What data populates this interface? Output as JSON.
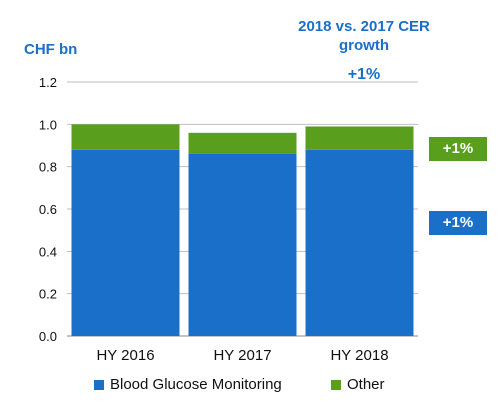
{
  "unit_label": "CHF bn",
  "growth_header": "2018 vs. 2017 CER growth",
  "growth_total": "+1%",
  "segment_growth": {
    "other": "+1%",
    "bgm": "+1%"
  },
  "colors": {
    "bgm": "#1a70c8",
    "other": "#5a9e1e",
    "text": "#1a70c8",
    "grid": "#bfbfbf"
  },
  "chart_data": {
    "type": "bar",
    "stacked": true,
    "categories": [
      "HY 2016",
      "HY 2017",
      "HY 2018"
    ],
    "series": [
      {
        "name": "Blood Glucose Monitoring",
        "values": [
          0.88,
          0.86,
          0.88
        ]
      },
      {
        "name": "Other",
        "values": [
          0.12,
          0.1,
          0.11
        ]
      }
    ],
    "ylabel": "CHF bn",
    "ylim": [
      0,
      1.2
    ],
    "yticks": [
      "0.0",
      "0.2",
      "0.4",
      "0.6",
      "0.8",
      "1.0",
      "1.2"
    ],
    "grid": true,
    "legend_position": "bottom"
  }
}
